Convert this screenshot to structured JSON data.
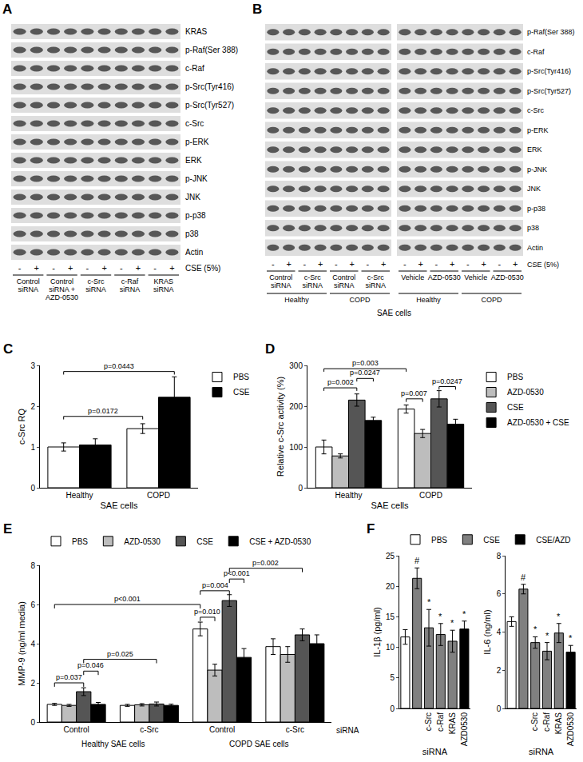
{
  "blots": [
    {
      "panel": "A",
      "rows": [
        "KRAS",
        "p-Raf(Ser 388)",
        "c-Raf",
        "p-Src(Tyr416)",
        "p-Src(Tyr527)",
        "c-Src",
        "p-ERK",
        "ERK",
        "p-JNK",
        "JNK",
        "p-p38",
        "p38",
        "Actin"
      ],
      "lanes": [
        "-",
        "+",
        "-",
        "+",
        "-",
        "+",
        "-",
        "+",
        "-",
        "+"
      ],
      "treatment": "CSE (5%)",
      "groups": [
        "Control siRNA",
        "Control siRNA + AZD-0530",
        "c-Src siRNA",
        "c-Raf siRNA",
        "KRAS siRNA"
      ]
    },
    {
      "panel": "B",
      "rows": [
        "p-Raf(Ser 388)",
        "c-Raf",
        "p-Src(Tyr416)",
        "p-Src(Tyr527)",
        "c-Src",
        "p-ERK",
        "ERK",
        "p-JNK",
        "JNK",
        "p-p38",
        "p38",
        "Actin"
      ],
      "lanes": [
        "-",
        "+",
        "-",
        "+",
        "-",
        "+",
        "-",
        "+",
        "-",
        "+",
        "-",
        "+",
        "-",
        "+",
        "-",
        "+"
      ],
      "treatment": "CSE (5%)",
      "groups": [
        "Control siRNA",
        "c-Src siRNA",
        "Control siRNA",
        "c-Src siRNA",
        "Vehicle",
        "AZD-0530",
        "Vehicle",
        "AZD-0530"
      ],
      "subgroups": [
        "Healthy",
        "COPD",
        "Healthy",
        "COPD"
      ],
      "footer": "SAE cells"
    }
  ],
  "chart_data": [
    {
      "type": "bar",
      "panel": "C",
      "categories": [
        "Healthy",
        "COPD"
      ],
      "xlabel": "SAE cells",
      "ylabel": "c-Src RQ",
      "ylim": [
        0,
        3
      ],
      "yticks": [
        0,
        1,
        2,
        3
      ],
      "grid": false,
      "legend": "right",
      "series": [
        {
          "name": "PBS",
          "color": "#ffffff",
          "values": [
            1.0,
            1.45
          ],
          "errors": [
            0.1,
            0.12
          ]
        },
        {
          "name": "CSE",
          "color": "#000000",
          "values": [
            1.05,
            2.22
          ],
          "errors": [
            0.15,
            0.5
          ]
        }
      ],
      "brackets": [
        {
          "text": "p=0.0172",
          "from": [
            0,
            0
          ],
          "to": [
            1,
            0
          ],
          "y": 1.75
        },
        {
          "text": "p=0.0443",
          "from": [
            0,
            0
          ],
          "to": [
            1,
            1
          ],
          "y": 2.85
        }
      ]
    },
    {
      "type": "bar",
      "panel": "D",
      "categories": [
        "Healthy",
        "COPD"
      ],
      "xlabel": "SAE cells",
      "ylabel": "Relative c-Src activity (%)",
      "ylim": [
        0,
        300
      ],
      "yticks": [
        0,
        100,
        200,
        300
      ],
      "grid": false,
      "legend": "right",
      "series": [
        {
          "name": "PBS",
          "color": "#ffffff",
          "values": [
            100,
            193
          ],
          "errors": [
            17,
            10
          ]
        },
        {
          "name": "AZD-0530",
          "color": "#bdbdbd",
          "values": [
            78,
            133
          ],
          "errors": [
            5,
            10
          ]
        },
        {
          "name": "CSE",
          "color": "#555555",
          "values": [
            215,
            218
          ],
          "errors": [
            15,
            20
          ]
        },
        {
          "name": "AZD-0530 + CSE",
          "color": "#000000",
          "values": [
            165,
            156
          ],
          "errors": [
            8,
            12
          ]
        }
      ],
      "brackets": [
        {
          "text": "p=0.002",
          "from": [
            0,
            0
          ],
          "to": [
            0,
            2
          ],
          "y": 245
        },
        {
          "text": "p=0.0247",
          "from": [
            0,
            2
          ],
          "to": [
            0,
            3
          ],
          "y": 268
        },
        {
          "text": "p=0.003",
          "from": [
            0,
            0
          ],
          "to": [
            1,
            0
          ],
          "y": 292
        },
        {
          "text": "p=0.007",
          "from": [
            1,
            0
          ],
          "to": [
            1,
            1
          ],
          "y": 218
        },
        {
          "text": "p=0.0247",
          "from": [
            1,
            2
          ],
          "to": [
            1,
            3
          ],
          "y": 248
        }
      ]
    },
    {
      "type": "bar",
      "panel": "E",
      "categories": [
        "Control",
        "c-Src",
        "Control",
        "c-Src"
      ],
      "group_labels": [
        "Healthy SAE cells",
        "COPD SAE cells"
      ],
      "xlabel": "siRNA",
      "ylabel": "MMP-9 (ng/ml media)",
      "ylim": [
        0,
        8
      ],
      "yticks": [
        0,
        2,
        4,
        6,
        8
      ],
      "grid": false,
      "legend": "top",
      "series": [
        {
          "name": "PBS",
          "color": "#ffffff",
          "values": [
            0.9,
            0.85,
            4.75,
            3.85
          ],
          "errors": [
            0.05,
            0.05,
            0.35,
            0.4
          ]
        },
        {
          "name": "AZD-0530",
          "color": "#bdbdbd",
          "values": [
            0.85,
            0.88,
            2.65,
            3.45
          ],
          "errors": [
            0.05,
            0.06,
            0.3,
            0.4
          ]
        },
        {
          "name": "CSE",
          "color": "#555555",
          "values": [
            1.55,
            0.92,
            6.2,
            4.45
          ],
          "errors": [
            0.2,
            0.1,
            0.3,
            0.3
          ]
        },
        {
          "name": "CSE + AZD-0530",
          "color": "#000000",
          "values": [
            0.9,
            0.85,
            3.3,
            4.0
          ],
          "errors": [
            0.1,
            0.06,
            0.45,
            0.45
          ]
        }
      ],
      "brackets": [
        {
          "text": "p=0.037",
          "from": [
            0,
            0
          ],
          "to": [
            0,
            2
          ],
          "y": 2.0
        },
        {
          "text": "p=0.046",
          "from": [
            0,
            2
          ],
          "to": [
            0,
            3
          ],
          "y": 2.6
        },
        {
          "text": "p=0.025",
          "from": [
            0,
            2
          ],
          "to": [
            1,
            2
          ],
          "y": 3.2
        },
        {
          "text": "p<0.001",
          "from": [
            0,
            0
          ],
          "to": [
            2,
            0
          ],
          "y": 6.0
        },
        {
          "text": "p=0.010",
          "from": [
            2,
            0
          ],
          "to": [
            2,
            1
          ],
          "y": 5.35
        },
        {
          "text": "p=0.004",
          "from": [
            2,
            0
          ],
          "to": [
            2,
            2
          ],
          "y": 6.7
        },
        {
          "text": "p<0.001",
          "from": [
            2,
            2
          ],
          "to": [
            2,
            3
          ],
          "y": 7.3
        },
        {
          "text": "p=0.002",
          "from": [
            2,
            2
          ],
          "to": [
            3,
            2
          ],
          "y": 7.85
        }
      ]
    },
    {
      "type": "bar",
      "panel": "F",
      "categories": [
        null,
        null,
        "c-Src",
        "c-Raf",
        "KRAS",
        "AZD0530"
      ],
      "xlabel": "siRNA",
      "ylabel": "IL-1β (pg/ml)",
      "ylim": [
        0,
        25
      ],
      "yticks": [
        0,
        5,
        10,
        15,
        20,
        25
      ],
      "grid": false,
      "legend": "top left",
      "series": [
        {
          "name": "PBS",
          "color": "#ffffff",
          "values": [
            11.7,
            null,
            null,
            null,
            null,
            null
          ],
          "errors": [
            1.2,
            null,
            null,
            null,
            null,
            null
          ]
        },
        {
          "name": "CSE",
          "color": "#808080",
          "values": [
            null,
            21.3,
            13.2,
            12.1,
            11.0,
            null
          ],
          "errors": [
            null,
            1.7,
            3.0,
            1.8,
            1.8,
            null
          ]
        },
        {
          "name": "CSE/AZD",
          "color": "#000000",
          "values": [
            null,
            null,
            null,
            null,
            null,
            13.0
          ],
          "errors": [
            null,
            null,
            null,
            null,
            null,
            1.3
          ]
        }
      ],
      "annotations": [
        {
          "text": "#",
          "x": 1
        },
        {
          "text": "*",
          "x": 2
        },
        {
          "text": "*",
          "x": 3
        },
        {
          "text": "*",
          "x": 4
        },
        {
          "text": "*",
          "x": 5
        }
      ]
    },
    {
      "type": "bar",
      "categories": [
        null,
        null,
        "c-Src",
        "c-Raf",
        "KRAS",
        "AZD0530"
      ],
      "xlabel": "siRNA",
      "ylabel": "IL-6 (ng/ml)",
      "ylim": [
        0,
        8
      ],
      "yticks": [
        0,
        2,
        4,
        6,
        8
      ],
      "grid": false,
      "series": [
        {
          "name": "PBS",
          "color": "#ffffff",
          "values": [
            4.55,
            null,
            null,
            null,
            null,
            null
          ],
          "errors": [
            0.25,
            null,
            null,
            null,
            null,
            null
          ]
        },
        {
          "name": "CSE",
          "color": "#808080",
          "values": [
            null,
            6.25,
            3.45,
            3.0,
            3.95,
            null
          ],
          "errors": [
            null,
            0.25,
            0.3,
            0.45,
            0.5,
            null
          ]
        },
        {
          "name": "CSE/AZD",
          "color": "#000000",
          "values": [
            null,
            null,
            null,
            null,
            null,
            2.95
          ],
          "errors": [
            null,
            null,
            null,
            null,
            null,
            0.35
          ]
        }
      ],
      "annotations": [
        {
          "text": "#",
          "x": 1
        },
        {
          "text": "*",
          "x": 2
        },
        {
          "text": "*",
          "x": 3
        },
        {
          "text": "*",
          "x": 4
        },
        {
          "text": "*",
          "x": 5
        }
      ]
    }
  ]
}
